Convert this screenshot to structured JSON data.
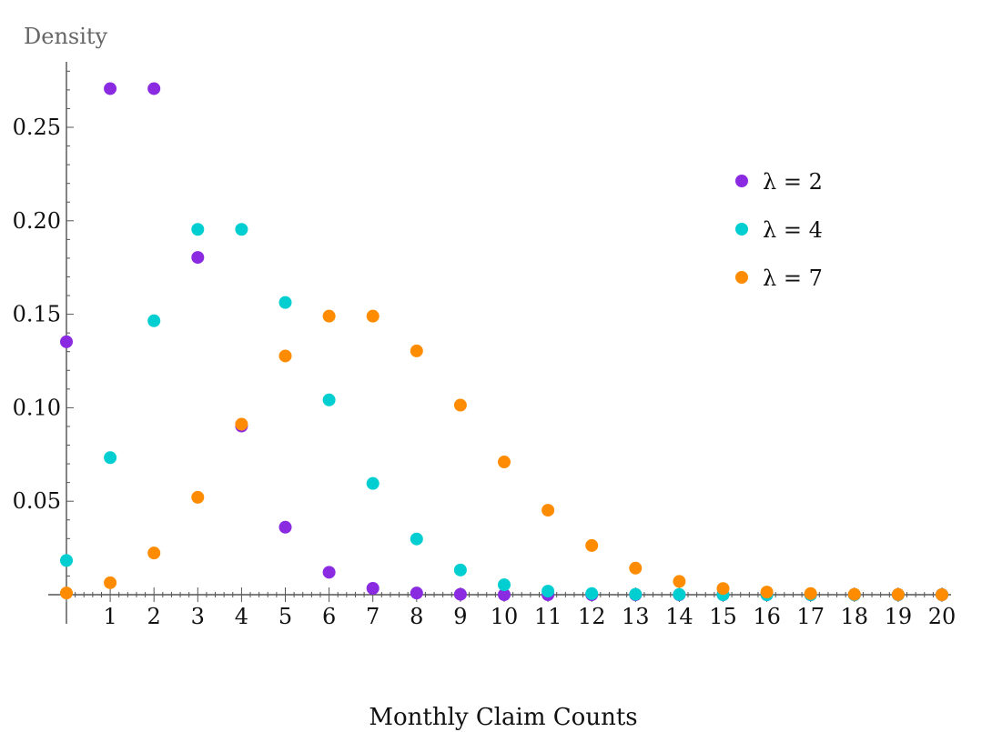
{
  "chart_data": {
    "type": "scatter",
    "xlabel": "Monthly Claim Counts",
    "ylabel": "Density",
    "x": [
      0,
      1,
      2,
      3,
      4,
      5,
      6,
      7,
      8,
      9,
      10,
      11,
      12,
      13,
      14,
      15,
      16,
      17,
      18,
      19,
      20
    ],
    "xticks": [
      1,
      2,
      3,
      4,
      5,
      6,
      7,
      8,
      9,
      10,
      11,
      12,
      13,
      14,
      15,
      16,
      17,
      18,
      19,
      20
    ],
    "yticks": [
      0.05,
      0.1,
      0.15,
      0.2,
      0.25
    ],
    "ytick_labels": [
      "0.05",
      "0.10",
      "0.15",
      "0.20",
      "0.25"
    ],
    "xlim": [
      0,
      20
    ],
    "ylim": [
      0,
      0.28
    ],
    "legend_position": "right",
    "series": [
      {
        "name": "λ = 2",
        "color": "#8a2be2",
        "values": [
          0.1353,
          0.2707,
          0.2707,
          0.1804,
          0.0902,
          0.0361,
          0.012,
          0.0034,
          0.0009,
          0.0002,
          0.0,
          0.0,
          0.0,
          0.0,
          0.0,
          0.0,
          0.0,
          0.0,
          0.0,
          0.0,
          0.0
        ]
      },
      {
        "name": "λ = 4",
        "color": "#00ced1",
        "values": [
          0.0183,
          0.0733,
          0.1465,
          0.1954,
          0.1954,
          0.1563,
          0.1042,
          0.0595,
          0.0298,
          0.0132,
          0.0053,
          0.0019,
          0.0006,
          0.0002,
          0.0001,
          0.0,
          0.0,
          0.0,
          0.0,
          0.0,
          0.0
        ]
      },
      {
        "name": "λ = 7",
        "color": "#ff8c00",
        "values": [
          0.0009,
          0.0064,
          0.0223,
          0.0521,
          0.0912,
          0.1277,
          0.149,
          0.149,
          0.1304,
          0.1014,
          0.071,
          0.0452,
          0.0263,
          0.0142,
          0.0071,
          0.0033,
          0.0014,
          0.0006,
          0.0002,
          0.0001,
          0.0
        ]
      }
    ]
  }
}
